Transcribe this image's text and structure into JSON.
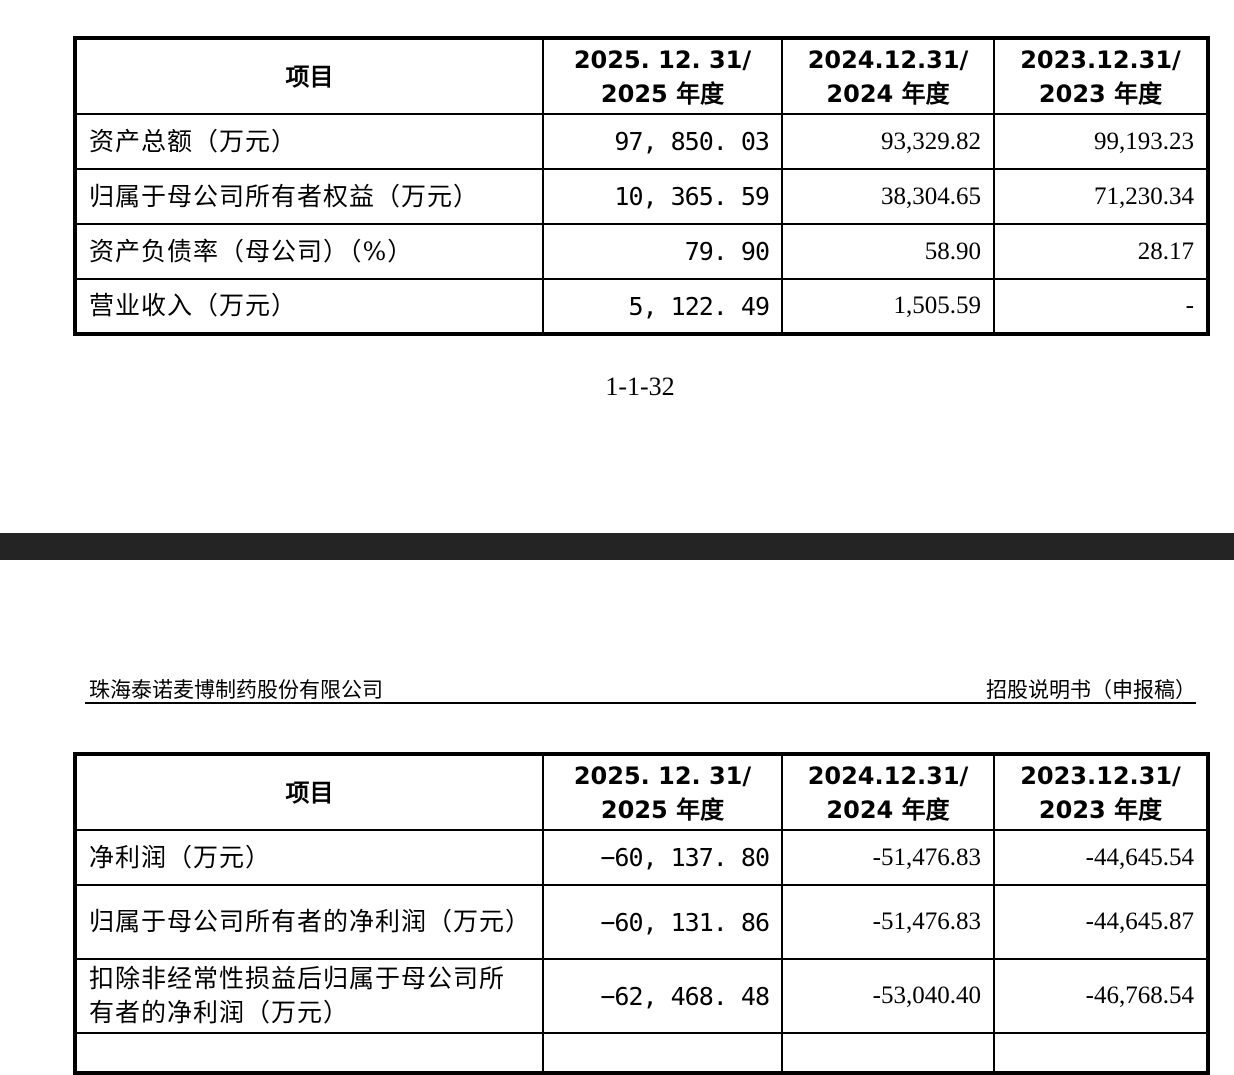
{
  "page1": {
    "table": {
      "headers": [
        "项目",
        "2025. 12. 31/\n2025 年度",
        "2024.12.31/\n2024 年度",
        "2023.12.31/\n2023 年度"
      ],
      "rows": [
        {
          "label": "资产总额（万元）",
          "v2025": "97, 850. 03",
          "v2024": "93,329.82",
          "v2023": "99,193.23"
        },
        {
          "label": "归属于母公司所有者权益（万元）",
          "v2025": "10, 365. 59",
          "v2024": "38,304.65",
          "v2023": "71,230.34"
        },
        {
          "label": "资产负债率（母公司）（%）",
          "v2025": "79. 90",
          "v2024": "58.90",
          "v2023": "28.17"
        },
        {
          "label": "营业收入（万元）",
          "v2025": "5, 122. 49",
          "v2024": "1,505.59",
          "v2023": "-"
        }
      ]
    },
    "page_number": "1-1-32"
  },
  "page2": {
    "header_left": "珠海泰诺麦博制药股份有限公司",
    "header_right": "招股说明书（申报稿）",
    "table": {
      "headers": [
        "项目",
        "2025. 12. 31/\n2025 年度",
        "2024.12.31/\n2024 年度",
        "2023.12.31/\n2023 年度"
      ],
      "rows": [
        {
          "label": "净利润（万元）",
          "v2025": "−60, 137. 80",
          "v2024": "-51,476.83",
          "v2023": "-44,645.54"
        },
        {
          "label": "归属于母公司所有者的净利润（万元）",
          "v2025": "−60, 131. 86",
          "v2024": "-51,476.83",
          "v2023": "-44,645.87"
        },
        {
          "label": "扣除非经常性损益后归属于母公司所有者的净利润（万元）",
          "v2025": "−62, 468. 48",
          "v2024": "-53,040.40",
          "v2023": "-46,768.54"
        }
      ]
    }
  }
}
